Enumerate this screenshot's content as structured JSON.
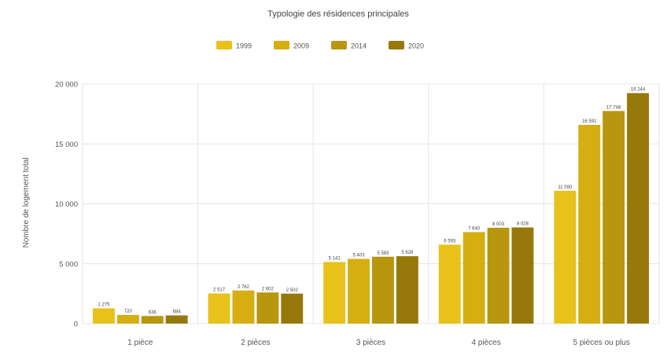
{
  "chart_data": {
    "type": "bar",
    "title": "Typologie des résidences principales",
    "xlabel": "",
    "ylabel": "Nombre de logement total",
    "ylim": [
      0,
      20000
    ],
    "yticks": [
      0,
      5000,
      10000,
      15000,
      20000
    ],
    "ytick_labels": [
      "0",
      "5 000",
      "10 000",
      "15 000",
      "20 000"
    ],
    "grid": true,
    "legend_position": "top-center",
    "categories": [
      "1 pièce",
      "2 pièces",
      "3 pièces",
      "4 pièces",
      "5 pièces ou plus"
    ],
    "series": [
      {
        "name": "1999",
        "color": "#E8C21A",
        "values": [
          1275,
          2517,
          5141,
          6593,
          11090
        ],
        "labels": [
          "1 275",
          "2 517",
          "5 141",
          "6 593",
          "11 090"
        ]
      },
      {
        "name": "2009",
        "color": "#D6AE12",
        "values": [
          720,
          2762,
          5403,
          7640,
          16591
        ],
        "labels": [
          "720",
          "2 762",
          "5 403",
          "7 640",
          "16 591"
        ]
      },
      {
        "name": "2014",
        "color": "#B8960E",
        "values": [
          636,
          2602,
          5583,
          8003,
          17748
        ],
        "labels": [
          "636",
          "2 602",
          "5 583",
          "8 003",
          "17 748"
        ]
      },
      {
        "name": "2020",
        "color": "#96790A",
        "values": [
          684,
          2502,
          5628,
          8028,
          19244
        ],
        "labels": [
          "684",
          "2 502",
          "5 628",
          "8 028",
          "19 244"
        ]
      }
    ]
  },
  "colors": {
    "gridline": "#e4e4e4",
    "axis_text": "#555555",
    "title_text": "#444444",
    "label_text": "#444444"
  }
}
